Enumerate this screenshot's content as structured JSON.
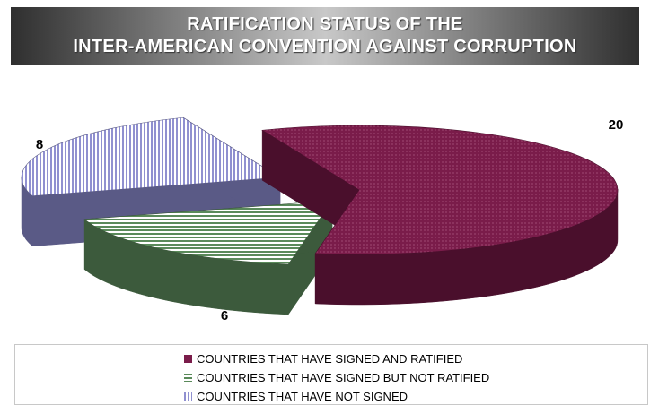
{
  "title": {
    "line1": "RATIFICATION STATUS OF THE",
    "line2": "INTER-AMERICAN CONVENTION AGAINST CORRUPTION"
  },
  "chart_data": {
    "type": "pie",
    "three_d": true,
    "exploded": true,
    "title": "RATIFICATION STATUS OF THE INTER-AMERICAN CONVENTION AGAINST CORRUPTION",
    "categories": [
      "COUNTRIES THAT HAVE SIGNED AND RATIFIED",
      "COUNTRIES THAT HAVE SIGNED BUT NOT RATIFIED",
      "COUNTRIES THAT HAVE NOT SIGNED"
    ],
    "values": [
      20,
      6,
      8
    ],
    "data_labels": [
      "20",
      "6",
      "8"
    ],
    "colors": [
      "#7a1c4a",
      "#4e7a4e",
      "#9a9ad8"
    ],
    "side_colors": [
      "#4a0f2c",
      "#3c5a3c",
      "#5a5a86"
    ],
    "legend_position": "bottom"
  }
}
